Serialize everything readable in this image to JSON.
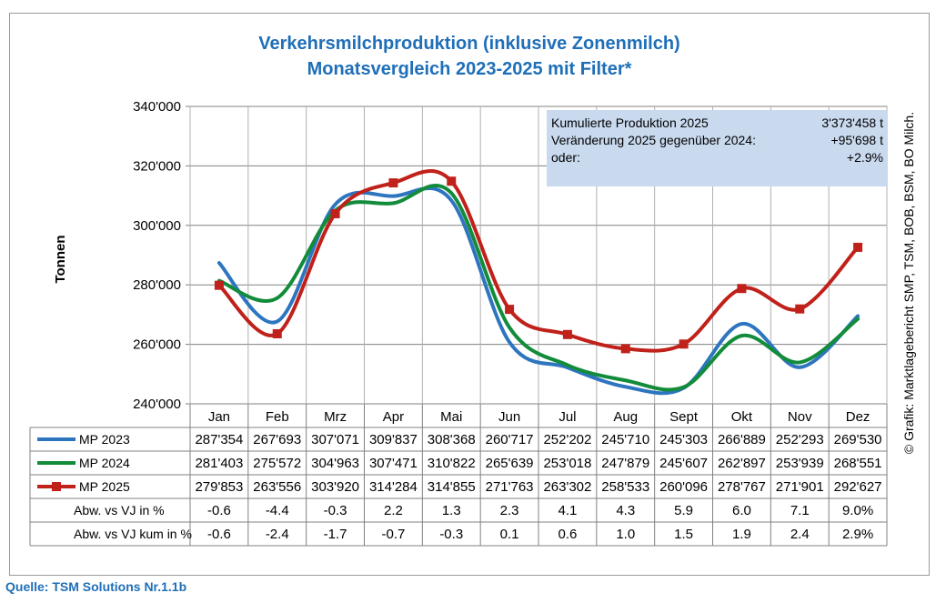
{
  "chart_data": {
    "type": "line",
    "title": [
      "Verkehrsmilchproduktion (inklusive Zonenmilch)",
      "Monatsvergleich 2023-2025 mit Filter*"
    ],
    "ylabel": "Tonnen",
    "ylim": [
      240000,
      340000
    ],
    "yticks": [
      240000,
      260000,
      280000,
      300000,
      320000,
      340000
    ],
    "ytick_labels": [
      "240'000",
      "260'000",
      "280'000",
      "300'000",
      "320'000",
      "340'000"
    ],
    "categories": [
      "Jan",
      "Feb",
      "Mrz",
      "Apr",
      "Mai",
      "Jun",
      "Jul",
      "Aug",
      "Sept",
      "Okt",
      "Nov",
      "Dez"
    ],
    "series": [
      {
        "name": "MP 2023",
        "color": "#2e75c0",
        "marker": "none",
        "values": [
          287354,
          267693,
          307071,
          309837,
          308368,
          260717,
          252202,
          245710,
          245303,
          266889,
          252293,
          269530
        ],
        "labels": [
          "287'354",
          "267'693",
          "307'071",
          "309'837",
          "308'368",
          "260'717",
          "252'202",
          "245'710",
          "245'303",
          "266'889",
          "252'293",
          "269'530"
        ]
      },
      {
        "name": "MP 2024",
        "color": "#128c3a",
        "marker": "none",
        "values": [
          281403,
          275572,
          304963,
          307471,
          310822,
          265639,
          253018,
          247879,
          245607,
          262897,
          253939,
          268551
        ],
        "labels": [
          "281'403",
          "275'572",
          "304'963",
          "307'471",
          "310'822",
          "265'639",
          "253'018",
          "247'879",
          "245'607",
          "262'897",
          "253'939",
          "268'551"
        ]
      },
      {
        "name": "MP 2025",
        "color": "#c0211a",
        "marker": "square",
        "values": [
          279853,
          263556,
          303920,
          314284,
          314855,
          271763,
          263302,
          258533,
          260096,
          278767,
          271901,
          292627
        ],
        "labels": [
          "279'853",
          "263'556",
          "303'920",
          "314'284",
          "314'855",
          "271'763",
          "263'302",
          "258'533",
          "260'096",
          "278'767",
          "271'901",
          "292'627"
        ]
      }
    ],
    "extra_rows": [
      {
        "label": "Abw. vs VJ in %",
        "values": [
          "-0.6",
          "-4.4",
          "-0.3",
          "2.2",
          "1.3",
          "2.3",
          "4.1",
          "4.3",
          "5.9",
          "6.0",
          "7.1",
          "9.0%"
        ]
      },
      {
        "label": "Abw. vs VJ kum in %",
        "values": [
          "-0.6",
          "-2.4",
          "-1.7",
          "-0.7",
          "-0.3",
          "0.1",
          "0.6",
          "1.0",
          "1.5",
          "1.9",
          "2.4",
          "2.9%"
        ]
      }
    ],
    "annotation": {
      "background": "#c9d9ee",
      "rows": [
        {
          "label": "Kumulierte Produktion 2025",
          "value": "3'373'458 t"
        },
        {
          "label": "Veränderung 2025 gegenüber 2024:",
          "value": "+95'698 t"
        },
        {
          "label": "oder:",
          "value": "+2.9%"
        }
      ]
    },
    "credit": "© Grafik: Marktlagebericht SMP, TSM, BOB, BSM, BO Milch."
  },
  "source": "Quelle: TSM Solutions Nr.1.1b"
}
